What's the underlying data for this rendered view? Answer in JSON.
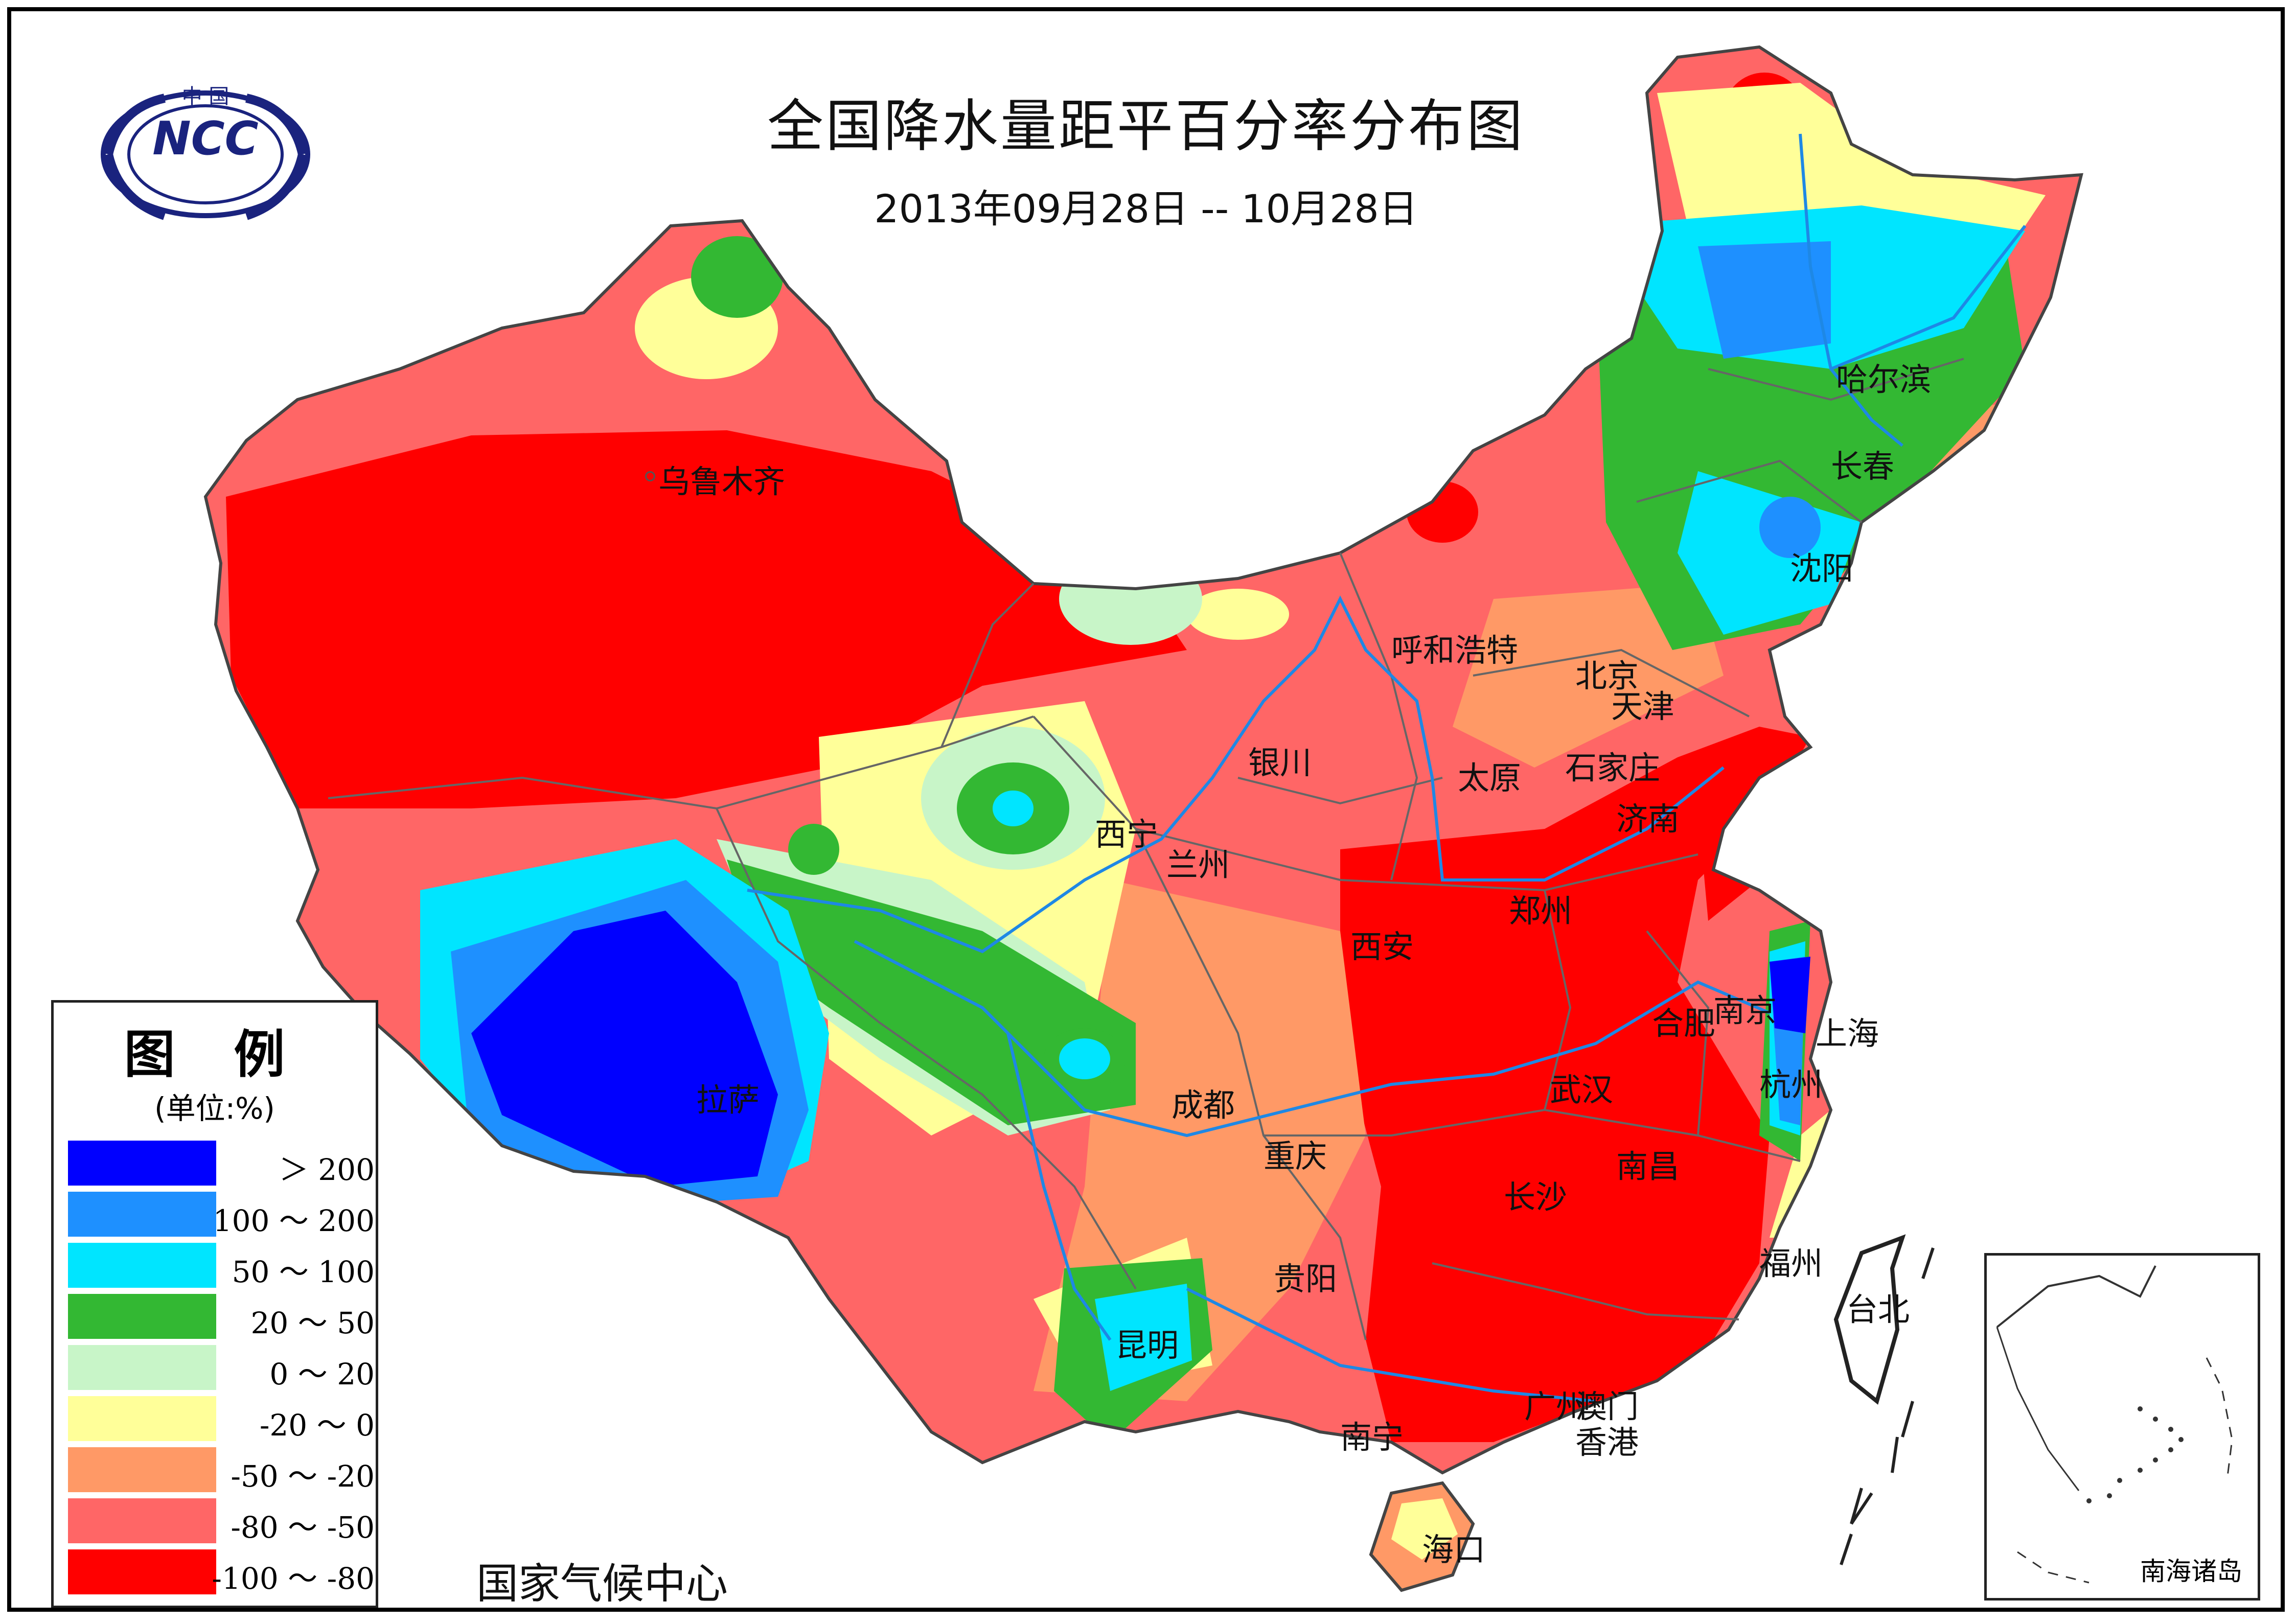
{
  "title": "全国降水量距平百分率分布图",
  "date_range": "2013年09月28日 -- 10月28日",
  "logo": {
    "top_text": "中 国",
    "center_text": "NCC"
  },
  "source": "国家气候中心",
  "legend": {
    "title": "图 例",
    "unit": "(单位:%)",
    "items": [
      {
        "label": "＞ 200",
        "color": "#0000ff"
      },
      {
        "label": "100 ～ 200",
        "color": "#1e90ff"
      },
      {
        "label": "50 ～ 100",
        "color": "#00e5ff"
      },
      {
        "label": "20 ～ 50",
        "color": "#33b833"
      },
      {
        "label": "0 ～ 20",
        "color": "#c8f5c8"
      },
      {
        "label": "-20 ～ 0",
        "color": "#ffff99"
      },
      {
        "label": "-50 ～ -20",
        "color": "#ff9966"
      },
      {
        "label": "-80 ～ -50",
        "color": "#ff6666"
      },
      {
        "label": "-100 ～ -80",
        "color": "#ff0000"
      }
    ]
  },
  "cities": {
    "urumqi": "乌鲁木齐",
    "lhasa": "拉萨",
    "xining": "西宁",
    "lanzhou": "兰州",
    "yinchuan": "银川",
    "hohhot": "呼和浩特",
    "beijing": "北京",
    "tianjin": "天津",
    "shijiazhuang": "石家庄",
    "taiyuan": "太原",
    "jinan": "济南",
    "zhengzhou": "郑州",
    "xian": "西安",
    "chengdu": "成都",
    "chongqing": "重庆",
    "guiyang": "贵阳",
    "kunming": "昆明",
    "nanning": "南宁",
    "guangzhou": "广州",
    "macau": "澳门",
    "hongkong": "香港",
    "haikou": "海口",
    "changsha": "长沙",
    "wuhan": "武汉",
    "nanchang": "南昌",
    "hefei": "合肥",
    "nanjing": "南京",
    "shanghai": "上海",
    "hangzhou": "杭州",
    "fuzhou": "福州",
    "taipei": "台北",
    "shenyang": "沈阳",
    "changchun": "长春",
    "harbin": "哈尔滨"
  },
  "inset_label": "南海诸岛"
}
